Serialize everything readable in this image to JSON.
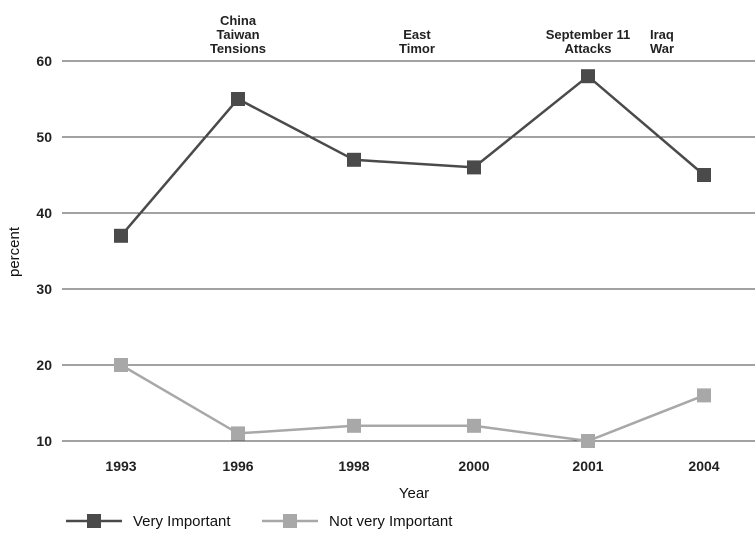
{
  "chart_data": {
    "type": "line",
    "xlabel": "Year",
    "ylabel": "percent",
    "categories": [
      "1993",
      "1996",
      "1998",
      "2000",
      "2001",
      "2004"
    ],
    "ylim": [
      10,
      60
    ],
    "yticks": [
      10,
      20,
      30,
      40,
      50,
      60
    ],
    "grid": true,
    "legend_position": "bottom-left",
    "series": [
      {
        "name": "Very Important",
        "values": [
          37,
          55,
          47,
          46,
          58,
          45
        ],
        "color": "#4a4a4a"
      },
      {
        "name": "Not very Important",
        "values": [
          20,
          11,
          12,
          12,
          10,
          16
        ],
        "color": "#a8a8a8"
      }
    ],
    "annotations": [
      {
        "category": "1996",
        "lines": [
          "China",
          "Taiwan",
          "Tensions"
        ]
      },
      {
        "category": "2000",
        "lines": [
          "East",
          "Timor"
        ]
      },
      {
        "category": "2001",
        "lines": [
          "September 11",
          "Attacks"
        ]
      },
      {
        "category": "2004",
        "lines": [
          "Iraq",
          "War"
        ]
      }
    ]
  }
}
